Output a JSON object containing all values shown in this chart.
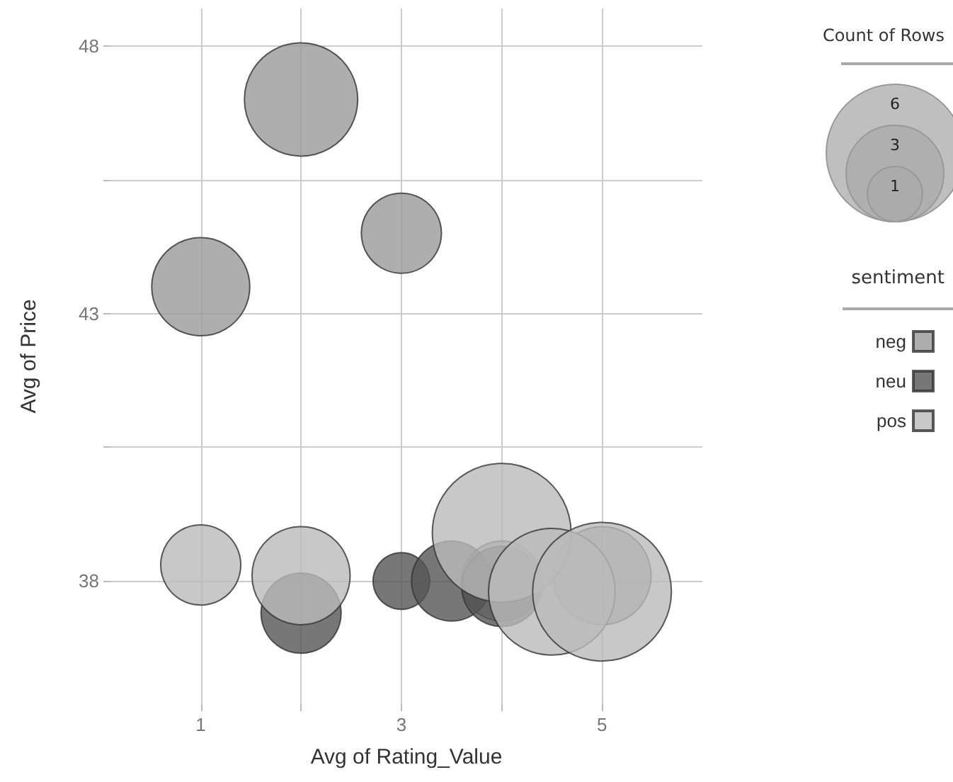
{
  "chart_data": {
    "type": "bubble",
    "xlabel": "Avg of Rating_Value",
    "ylabel": "Avg of Price",
    "legend_title": "sentiment",
    "annotations": [
      "Count of Rows"
    ],
    "xlim": [
      0.1,
      6
    ],
    "xticks": [
      1,
      {
        "value": 2,
        "label": null
      },
      3,
      {
        "value": 4,
        "label": null
      },
      5
    ],
    "ylim": [
      35.7,
      48.7
    ],
    "yticks": [
      38,
      {
        "value": 40.5,
        "label": null
      },
      43,
      {
        "value": 45.5,
        "label": null
      },
      48
    ],
    "grid": true,
    "legend": "right",
    "size_legend": [
      1,
      3,
      6
    ],
    "series": [
      {
        "name": "neg",
        "color": "#9a9a9a",
        "x": [
          2,
          3,
          1,
          4,
          5
        ],
        "values": [
          47.0,
          44.5,
          43.5,
          38.0,
          38.1
        ],
        "sizes": [
          4,
          2,
          3,
          2,
          3
        ]
      },
      {
        "name": "neu",
        "color": "#555555",
        "x": [
          2,
          3,
          3.5,
          4
        ],
        "values": [
          37.4,
          38.0,
          38.0,
          37.9
        ],
        "sizes": [
          2,
          1,
          2,
          2
        ]
      },
      {
        "name": "pos",
        "color": "#bababa",
        "x": [
          1,
          2,
          4,
          4.5,
          5
        ],
        "values": [
          38.3,
          38.1,
          38.9,
          37.8,
          37.8
        ],
        "sizes": [
          2,
          3,
          6,
          5,
          6
        ]
      }
    ]
  }
}
